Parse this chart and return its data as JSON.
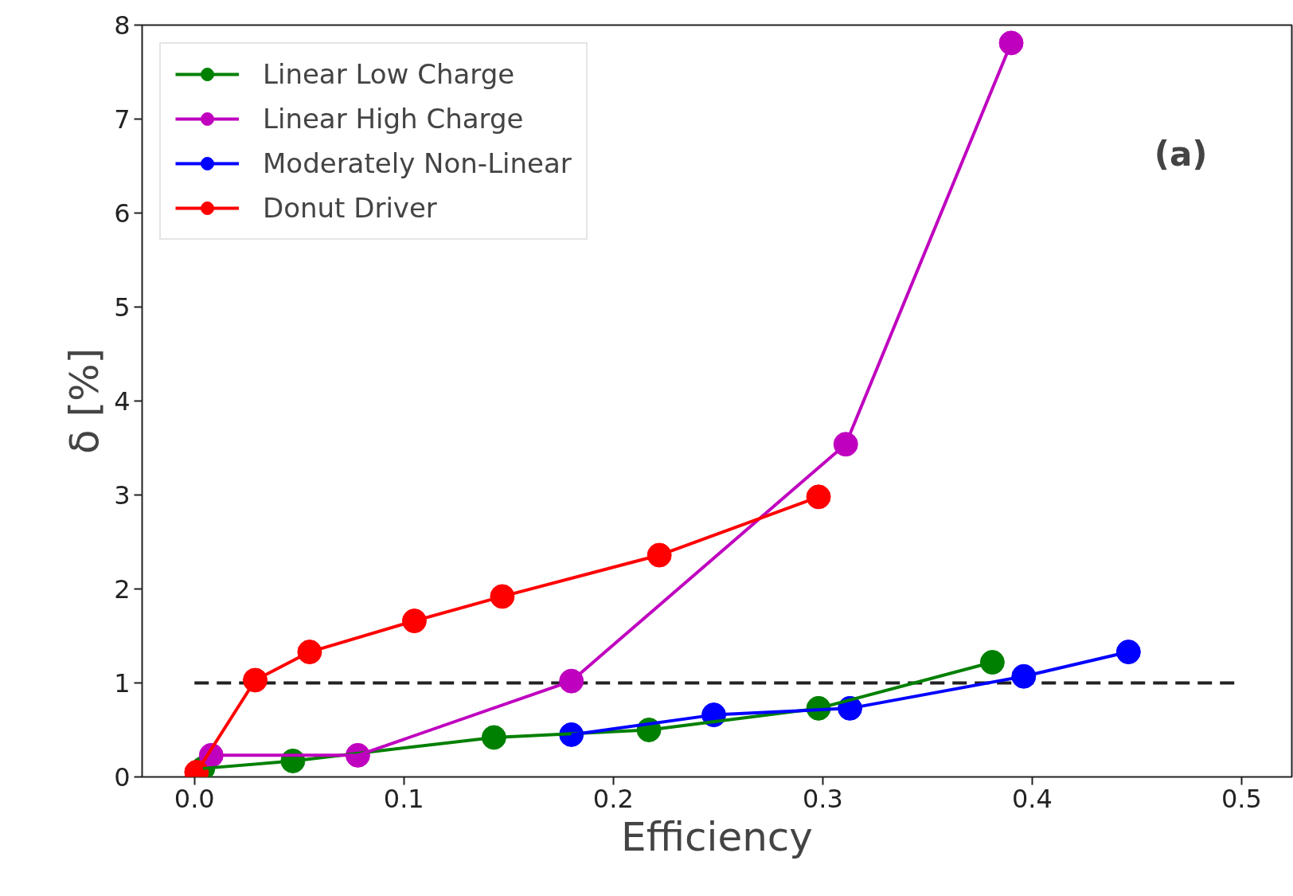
{
  "chart_data": {
    "type": "line",
    "xlabel": "Efficiency",
    "ylabel": "δ [%]",
    "xlim": [
      -0.025,
      0.524
    ],
    "ylim": [
      0,
      8
    ],
    "xticks": [
      {
        "value": 0,
        "label": "0.0"
      },
      0.1,
      0.2,
      0.3,
      0.4,
      0.5
    ],
    "yticks": [
      0,
      1,
      2,
      3,
      4,
      5,
      6,
      7,
      8
    ],
    "grid": false,
    "legend": "top left",
    "marker": "circle",
    "line_style": "solid",
    "annotations": [
      "(a)"
    ],
    "ref_lines": [
      {
        "axis": "y",
        "value": 1,
        "label": null,
        "color": "#222222",
        "line_style": "dashed"
      }
    ],
    "series": [
      {
        "name": "Linear Low Charge",
        "color": "#008000",
        "x": [
          0.004,
          0.047,
          0.143,
          0.217,
          0.298,
          0.381
        ],
        "values": [
          0.09,
          0.17,
          0.42,
          0.5,
          0.73,
          1.22
        ]
      },
      {
        "name": "Linear High Charge",
        "color": "#bf00bf",
        "x": [
          0.008,
          0.078,
          0.18,
          0.311,
          0.39
        ],
        "values": [
          0.23,
          0.23,
          1.02,
          3.54,
          7.81
        ]
      },
      {
        "name": "Moderately Non-Linear",
        "color": "#0000ff",
        "x": [
          0.18,
          0.248,
          0.313,
          0.396,
          0.446
        ],
        "values": [
          0.45,
          0.66,
          0.73,
          1.07,
          1.33
        ]
      },
      {
        "name": "Donut Driver",
        "color": "#ff0000",
        "x": [
          0.001,
          0.029,
          0.055,
          0.105,
          0.147,
          0.222,
          0.298
        ],
        "values": [
          0.05,
          1.03,
          1.33,
          1.66,
          1.92,
          2.36,
          2.98
        ]
      }
    ]
  }
}
